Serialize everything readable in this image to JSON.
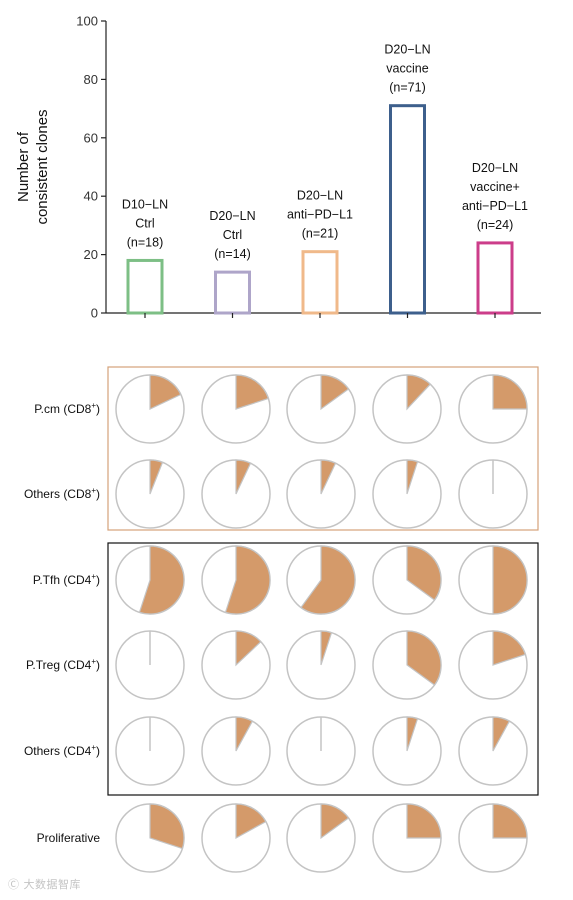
{
  "chart_data": [
    {
      "type": "bar",
      "ylabel": "Number of consistent clones",
      "ylim": [
        0,
        100
      ],
      "yticks": [
        0,
        20,
        40,
        60,
        80,
        100
      ],
      "grid": false,
      "categories": [
        {
          "lines": [
            "D10−LN",
            "Ctrl",
            "(n=18)"
          ],
          "value": 18,
          "color": "#7dbf85"
        },
        {
          "lines": [
            "D20−LN",
            "Ctrl",
            "(n=14)"
          ],
          "value": 14,
          "color": "#aea5c9"
        },
        {
          "lines": [
            "D20−LN",
            "anti−PD−L1",
            "(n=21)"
          ],
          "value": 21,
          "color": "#f0b98a"
        },
        {
          "lines": [
            "D20−LN",
            "vaccine",
            "(n=71)"
          ],
          "value": 71,
          "color": "#3d5f8c"
        },
        {
          "lines": [
            "D20−LN",
            "vaccine+",
            "anti−PD−L1",
            "(n=24)"
          ],
          "value": 24,
          "color": "#cc3d8a"
        }
      ]
    },
    {
      "type": "pie",
      "slice_color": "#d49a6a",
      "outline_color": "#c4c4c4",
      "columns": [
        "D10−LN Ctrl",
        "D20−LN Ctrl",
        "D20−LN anti−PD−L1",
        "D20−LN vaccine",
        "D20−LN vaccine+anti−PD−L1"
      ],
      "groups": [
        {
          "border_color": "#d4a27a",
          "rows": [
            {
              "label": "P.cm (CD8",
              "sup": "+",
              "close": ")",
              "fractions": [
                0.18,
                0.2,
                0.15,
                0.12,
                0.25
              ]
            },
            {
              "label": "Others (CD8",
              "sup": "+",
              "close": ")",
              "fractions": [
                0.06,
                0.07,
                0.07,
                0.05,
                0.0
              ]
            }
          ]
        },
        {
          "border_color": "#111111",
          "rows": [
            {
              "label": "P.Tfh (CD4",
              "sup": "+",
              "close": ")",
              "fractions": [
                0.55,
                0.55,
                0.6,
                0.35,
                0.5
              ]
            },
            {
              "label": "P.Treg (CD4",
              "sup": "+",
              "close": ")",
              "fractions": [
                0.0,
                0.13,
                0.05,
                0.35,
                0.2
              ]
            },
            {
              "label": "Others (CD4",
              "sup": "+",
              "close": ")",
              "fractions": [
                0.0,
                0.08,
                0.0,
                0.05,
                0.08
              ]
            }
          ]
        },
        {
          "border_color": null,
          "rows": [
            {
              "label": "Proliferative",
              "sup": "",
              "close": "",
              "fractions": [
                0.3,
                0.17,
                0.15,
                0.25,
                0.25
              ]
            }
          ]
        }
      ]
    }
  ],
  "watermark": "Ⓒ 大数据智库"
}
